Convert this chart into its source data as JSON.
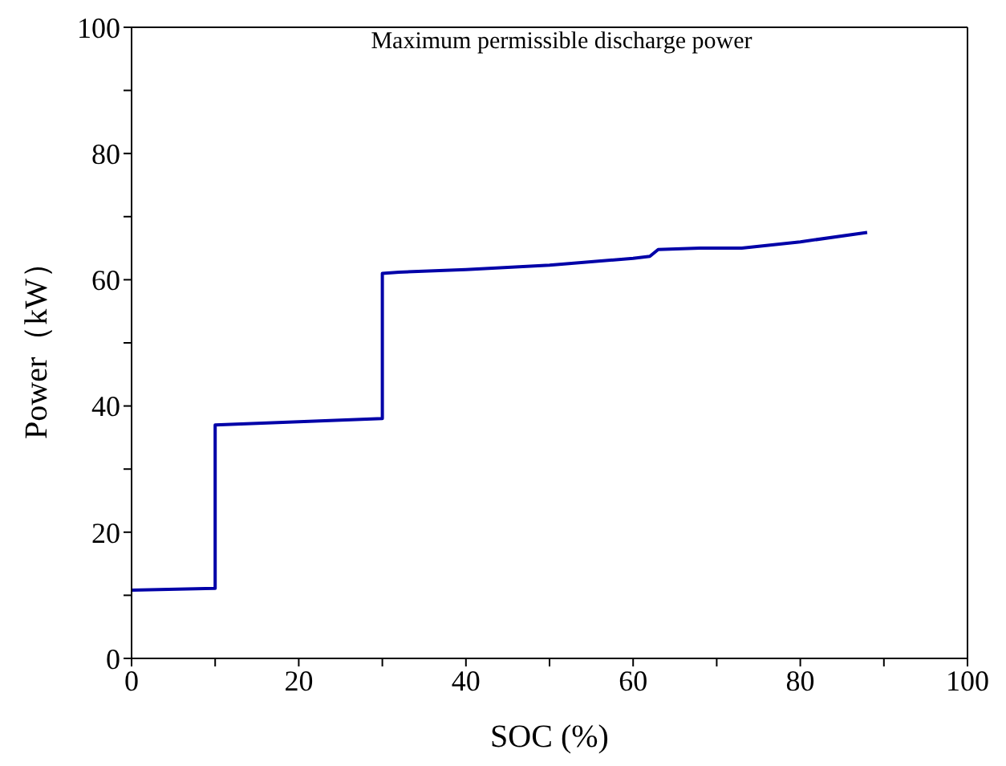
{
  "chart_data": {
    "type": "line",
    "title": "Maximum permissible discharge power",
    "xlabel": "SOC (%)",
    "ylabel": "Power（kW）",
    "x": [
      0,
      10,
      10,
      20,
      30,
      30,
      32,
      40,
      50,
      60,
      62,
      63,
      68,
      73,
      80,
      88
    ],
    "series": [
      {
        "color": "#0000a8",
        "values": [
          10.8,
          11.1,
          37,
          37.5,
          38,
          61,
          61.2,
          61.6,
          62.3,
          63.4,
          63.7,
          64.8,
          65,
          65,
          66,
          67.5
        ]
      }
    ],
    "xlim": [
      0,
      100
    ],
    "ylim": [
      0,
      100
    ],
    "xticks": [
      0,
      {
        "value": 10,
        "label": null
      },
      20,
      {
        "value": 30,
        "label": null
      },
      40,
      {
        "value": 50,
        "label": null
      },
      60,
      {
        "value": 70,
        "label": null
      },
      80,
      {
        "value": 90,
        "label": null
      },
      100
    ],
    "yticks": [
      0,
      {
        "value": 10,
        "label": null
      },
      20,
      {
        "value": 30,
        "label": null
      },
      40,
      {
        "value": 50,
        "label": null
      },
      60,
      {
        "value": 70,
        "label": null
      },
      80,
      {
        "value": 90,
        "label": null
      },
      100
    ],
    "grid": false,
    "legend": false,
    "marker": "none",
    "line_style": "solid"
  }
}
